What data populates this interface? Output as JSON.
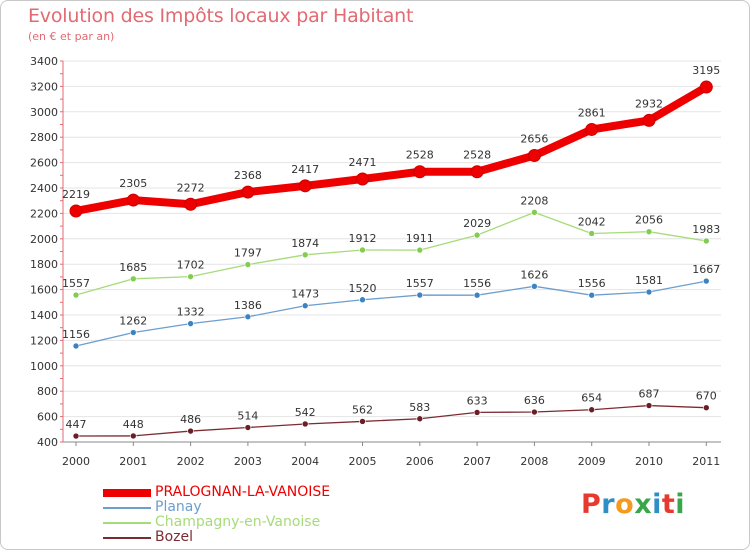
{
  "title": "Evolution des Impôts locaux par Habitant",
  "subtitle": "(en € et par an)",
  "logo": {
    "text": "Proxiti",
    "letters": [
      "P",
      "r",
      "o",
      "x",
      "i",
      "t",
      "i"
    ],
    "colors": [
      "#e8392e",
      "#2e8ec8",
      "#f59a1b",
      "#3aa64a",
      "#2e8ec8",
      "#e8392e",
      "#3aa64a"
    ]
  },
  "chart_data": {
    "type": "line",
    "x": [
      "2000",
      "2001",
      "2002",
      "2003",
      "2004",
      "2005",
      "2006",
      "2007",
      "2008",
      "2009",
      "2010",
      "2011"
    ],
    "ylim": [
      400,
      3400
    ],
    "yticks": [
      400,
      600,
      800,
      1000,
      1200,
      1400,
      1600,
      1800,
      2000,
      2200,
      2400,
      2600,
      2800,
      3000,
      3200,
      3400
    ],
    "grid": "horizontal",
    "legend_position": "bottom-left",
    "series": [
      {
        "name": "PRALOGNAN-LA-VANOISE",
        "color": "#ee0000",
        "marker_color": "#ee0000",
        "emphasis": true,
        "values": [
          2219,
          2305,
          2272,
          2368,
          2417,
          2471,
          2528,
          2528,
          2656,
          2861,
          2932,
          3195
        ]
      },
      {
        "name": "Planay",
        "color": "#6c9ecf",
        "marker_color": "#3d83c2",
        "emphasis": false,
        "values": [
          1156,
          1262,
          1332,
          1386,
          1473,
          1520,
          1557,
          1556,
          1626,
          1556,
          1581,
          1667
        ]
      },
      {
        "name": "Champagny-en-Vanoise",
        "color": "#a6db79",
        "marker_color": "#82cc4f",
        "emphasis": false,
        "values": [
          1557,
          1685,
          1702,
          1797,
          1874,
          1912,
          1911,
          2029,
          2208,
          2042,
          2056,
          1983
        ]
      },
      {
        "name": "Bozel",
        "color": "#7d2b32",
        "marker_color": "#6a1f26",
        "emphasis": false,
        "values": [
          447,
          448,
          486,
          514,
          542,
          562,
          583,
          633,
          636,
          654,
          687,
          670
        ]
      }
    ]
  }
}
